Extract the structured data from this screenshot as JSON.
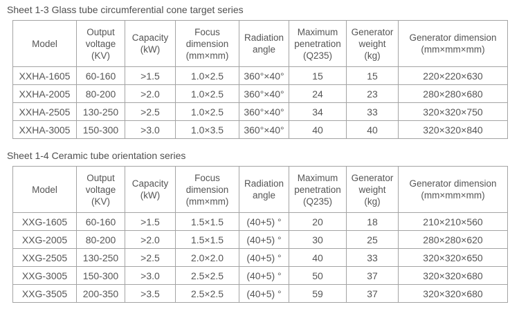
{
  "page": {
    "background_color": "#ffffff",
    "text_color": "#555555",
    "border_color": "#a3a3a3"
  },
  "tables": [
    {
      "title": "Sheet 1-3 Glass tube circumferential cone target series",
      "columns": [
        "Model",
        "Output\nvoltage\n(KV)",
        "Capacity\n(kW)",
        "Focus\ndimension\n(mm×mm)",
        "Radiation\nangle",
        "Maximum\npenetration\n(Q235)",
        "Generator\nweight\n(kg)",
        "Generator dimension\n(mm×mm×mm)"
      ],
      "rows": [
        [
          "XXHA-1605",
          "60-160",
          ">1.5",
          "1.0×2.5",
          "360°×40°",
          "15",
          "15",
          "220×220×630"
        ],
        [
          "XXHA-2005",
          "80-200",
          ">2.0",
          "1.0×2.5",
          "360°×40°",
          "24",
          "23",
          "280×280×680"
        ],
        [
          "XXHA-2505",
          "130-250",
          ">2.5",
          "1.0×2.5",
          "360°×40°",
          "34",
          "33",
          "320×320×750"
        ],
        [
          "XXHA-3005",
          "150-300",
          ">3.0",
          "1.0×3.5",
          "360°×40°",
          "40",
          "40",
          "320×320×840"
        ]
      ]
    },
    {
      "title": "Sheet 1-4 Ceramic tube orientation series",
      "columns": [
        "Model",
        "Output\nvoltage\n(KV)",
        "Capacity\n(kW)",
        "Focus\ndimension\n(mm×mm)",
        "Radiation\nangle",
        "Maximum\npenetration\n(Q235)",
        "Generator\nweight\n(kg)",
        "Generator dimension\n(mm×mm×mm)"
      ],
      "rows": [
        [
          "XXG-1605",
          "60-160",
          ">1.5",
          "1.5×1.5",
          "(40+5) °",
          "20",
          "18",
          "210×210×560"
        ],
        [
          "XXG-2005",
          "80-200",
          ">2.0",
          "1.5×1.5",
          "(40+5) °",
          "30",
          "25",
          "280×280×620"
        ],
        [
          "XXG-2505",
          "130-250",
          ">2.5",
          "2.0×2.0",
          "(40+5) °",
          "40",
          "33",
          "320×320×650"
        ],
        [
          "XXG-3005",
          "150-300",
          ">3.0",
          "2.5×2.5",
          "(40+5) °",
          "50",
          "37",
          "320×320×680"
        ],
        [
          "XXG-3505",
          "200-350",
          ">3.5",
          "2.5×2.5",
          "(40+5) °",
          "59",
          "37",
          "320×320×680"
        ]
      ]
    }
  ]
}
